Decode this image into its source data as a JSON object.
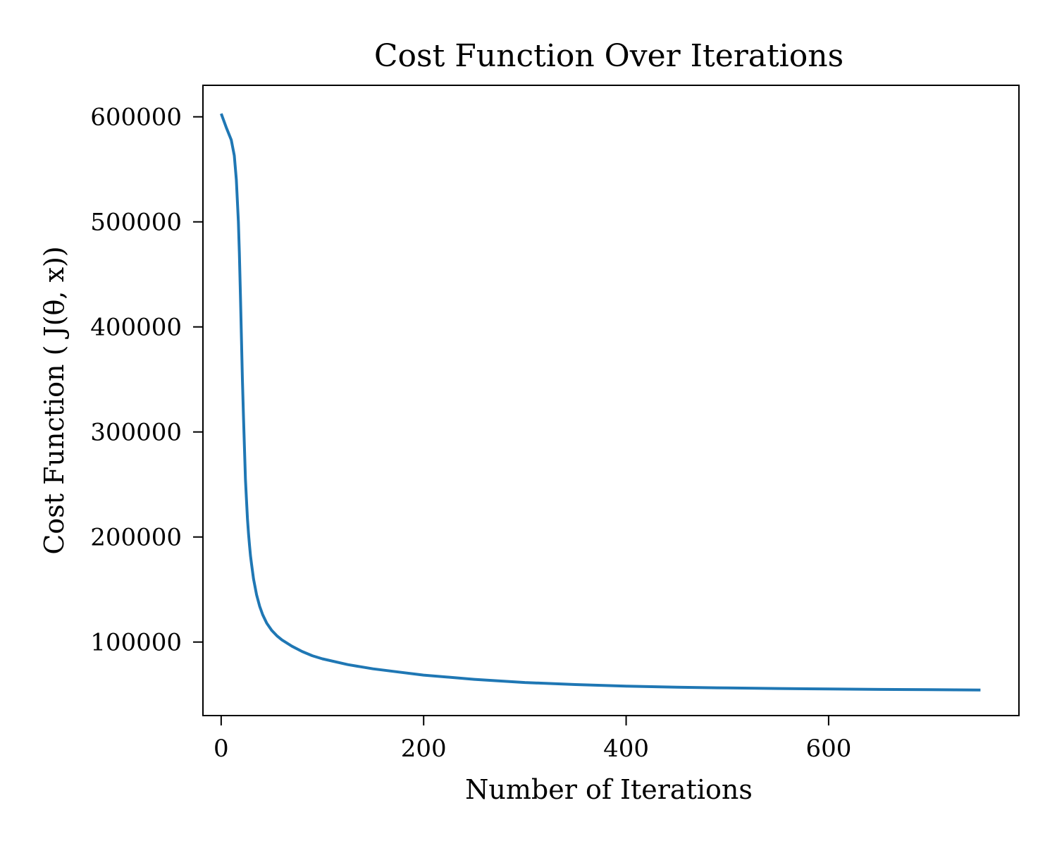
{
  "chart_data": {
    "type": "line",
    "title": "Cost Function Over Iterations",
    "xlabel": "Number of Iterations",
    "ylabel": "Cost Function ( J(θ, x))",
    "xlim": [
      -18,
      788
    ],
    "ylim": [
      30000,
      630000
    ],
    "xticks": [
      0,
      200,
      400,
      600
    ],
    "xtick_labels": [
      "0",
      "200",
      "400",
      "600"
    ],
    "yticks": [
      100000,
      200000,
      300000,
      400000,
      500000,
      600000
    ],
    "ytick_labels": [
      "100000",
      "200000",
      "300000",
      "400000",
      "500000",
      "600000"
    ],
    "grid": false,
    "series": [
      {
        "color": "#1f77b4",
        "x": [
          0,
          5,
          10,
          13,
          15,
          17,
          18,
          19,
          20,
          21,
          22,
          23,
          24,
          25,
          26,
          27,
          28,
          29,
          30,
          32,
          35,
          38,
          41,
          45,
          50,
          55,
          60,
          70,
          80,
          90,
          100,
          125,
          150,
          175,
          200,
          250,
          300,
          350,
          400,
          450,
          500,
          550,
          600,
          650,
          700,
          750
        ],
        "y": [
          603000,
          590000,
          578000,
          563000,
          540000,
          500000,
          470000,
          430000,
          390000,
          350000,
          315000,
          285000,
          255000,
          235000,
          217000,
          203000,
          192000,
          182000,
          174000,
          160000,
          145000,
          134000,
          126000,
          118000,
          111000,
          106000,
          102000,
          96000,
          91000,
          87000,
          84000,
          78500,
          74500,
          71500,
          68500,
          64500,
          61500,
          59500,
          58000,
          57000,
          56300,
          55800,
          55300,
          54900,
          54600,
          54300
        ]
      }
    ]
  }
}
